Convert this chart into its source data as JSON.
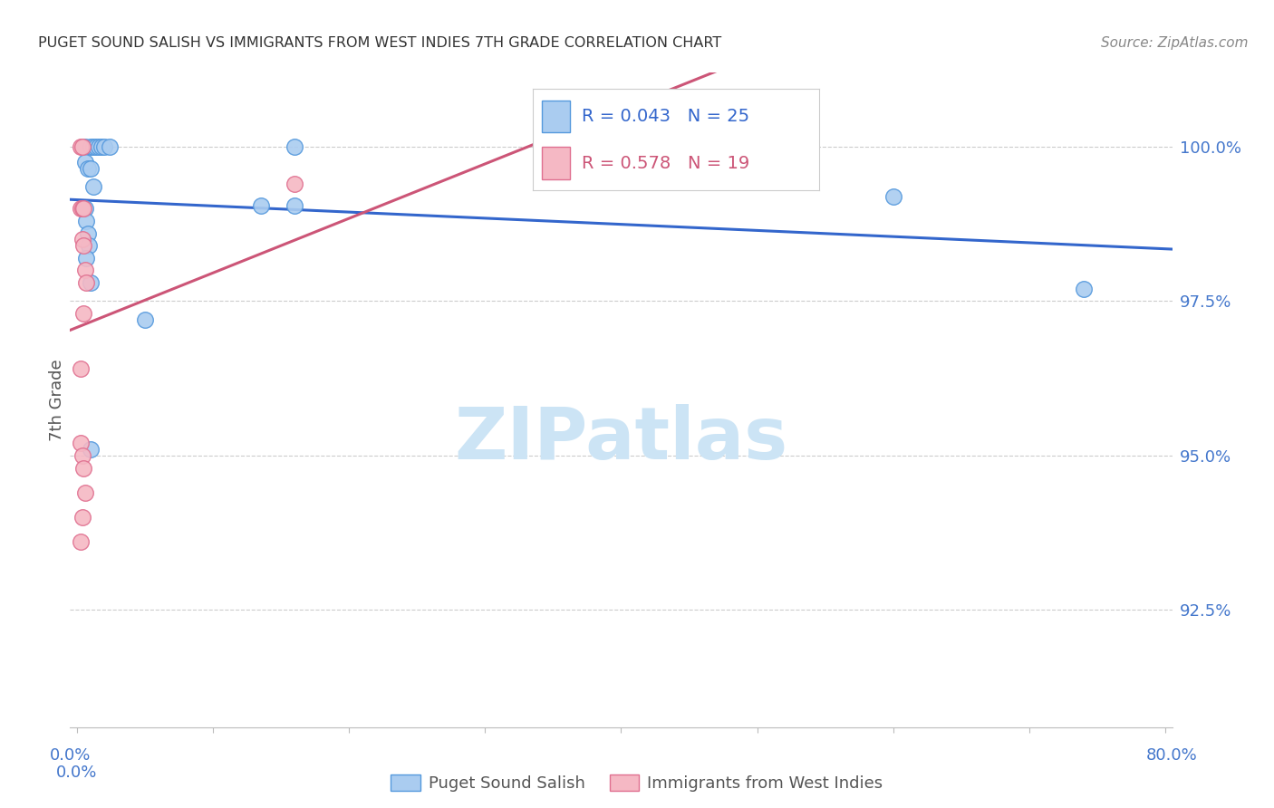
{
  "title": "PUGET SOUND SALISH VS IMMIGRANTS FROM WEST INDIES 7TH GRADE CORRELATION CHART",
  "source": "Source: ZipAtlas.com",
  "ylabel": "7th Grade",
  "ytick_labels": [
    "100.0%",
    "97.5%",
    "95.0%",
    "92.5%"
  ],
  "ytick_values": [
    1.0,
    0.975,
    0.95,
    0.925
  ],
  "xlim": [
    -0.005,
    0.805
  ],
  "ylim": [
    0.906,
    1.012
  ],
  "xtick_positions": [
    0.0,
    0.1,
    0.2,
    0.3,
    0.4,
    0.5,
    0.6,
    0.7,
    0.8
  ],
  "blue_r": 0.043,
  "blue_n": 25,
  "pink_r": 0.578,
  "pink_n": 19,
  "legend_label_blue": "Puget Sound Salish",
  "legend_label_pink": "Immigrants from West Indies",
  "blue_color": "#aaccf0",
  "pink_color": "#f5b8c4",
  "blue_edge_color": "#5599dd",
  "pink_edge_color": "#e07090",
  "blue_line_color": "#3366cc",
  "pink_line_color": "#cc5577",
  "title_color": "#333333",
  "right_axis_color": "#4477cc",
  "watermark_color": "#cce4f5",
  "xlabel_color": "#4477cc",
  "note_color": "#888888",
  "blue_x": [
    0.006,
    0.01,
    0.012,
    0.014,
    0.016,
    0.018,
    0.02,
    0.024,
    0.006,
    0.008,
    0.01,
    0.012,
    0.006,
    0.007,
    0.008,
    0.009,
    0.007,
    0.01,
    0.135,
    0.16,
    0.05,
    0.01,
    0.6,
    0.74,
    0.16
  ],
  "blue_y": [
    1.0,
    1.0,
    1.0,
    1.0,
    1.0,
    1.0,
    1.0,
    1.0,
    0.9975,
    0.9965,
    0.9965,
    0.9935,
    0.99,
    0.988,
    0.986,
    0.984,
    0.982,
    0.978,
    0.9905,
    0.9905,
    0.972,
    0.951,
    0.992,
    0.977,
    1.0
  ],
  "pink_x": [
    0.003,
    0.004,
    0.003,
    0.004,
    0.005,
    0.004,
    0.005,
    0.006,
    0.007,
    0.005,
    0.003,
    0.004,
    0.005,
    0.006,
    0.004,
    0.003,
    0.003,
    0.16,
    0.375
  ],
  "pink_y": [
    1.0,
    1.0,
    0.99,
    0.99,
    0.99,
    0.985,
    0.984,
    0.98,
    0.978,
    0.973,
    0.952,
    0.95,
    0.948,
    0.944,
    0.94,
    0.936,
    0.964,
    0.994,
    1.0
  ]
}
